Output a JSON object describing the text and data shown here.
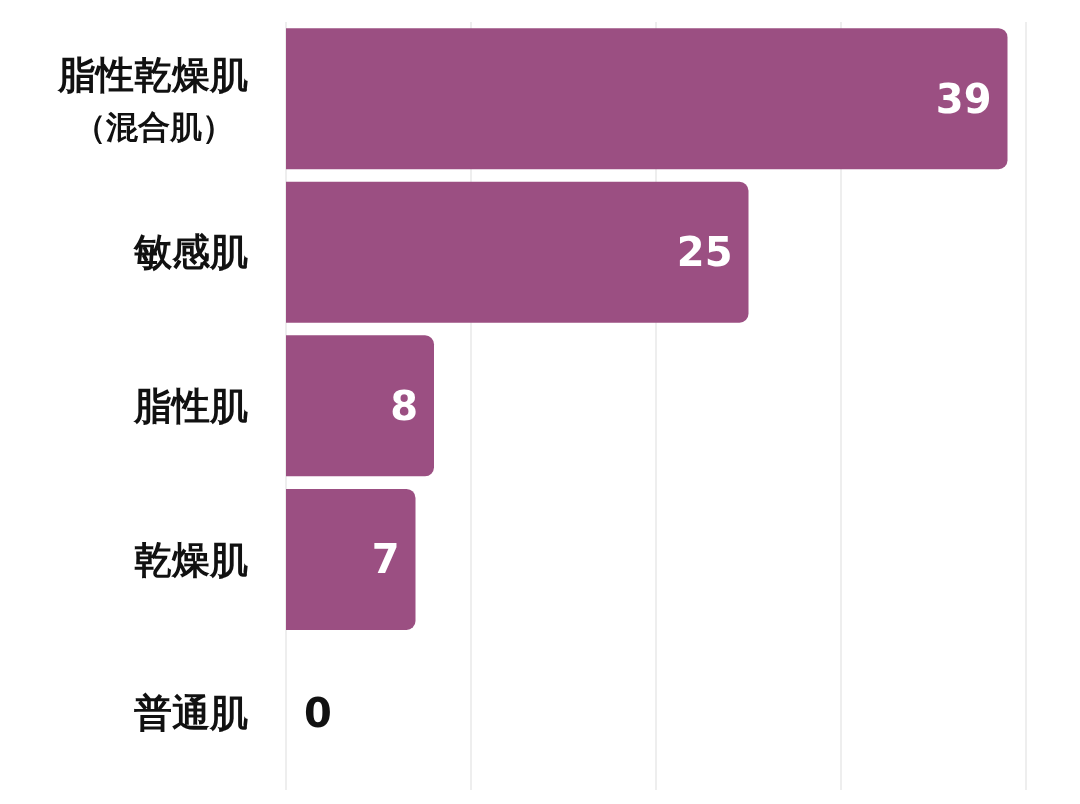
{
  "chart_data": {
    "type": "bar",
    "orientation": "horizontal",
    "categories": [
      "脂性乾燥肌（混合肌）",
      "敏感肌",
      "脂性肌",
      "乾燥肌",
      "普通肌"
    ],
    "values": [
      39,
      25,
      8,
      7,
      0
    ],
    "color": "#9b4f82",
    "data_labels": true,
    "xlim": [
      0,
      40
    ],
    "xticks": [
      {
        "value": 0,
        "label": null
      },
      {
        "value": 10,
        "label": null
      },
      {
        "value": 20,
        "label": null
      },
      {
        "value": 30,
        "label": null
      },
      {
        "value": 40,
        "label": null
      }
    ],
    "grid": "x",
    "tick_labels": "y"
  }
}
